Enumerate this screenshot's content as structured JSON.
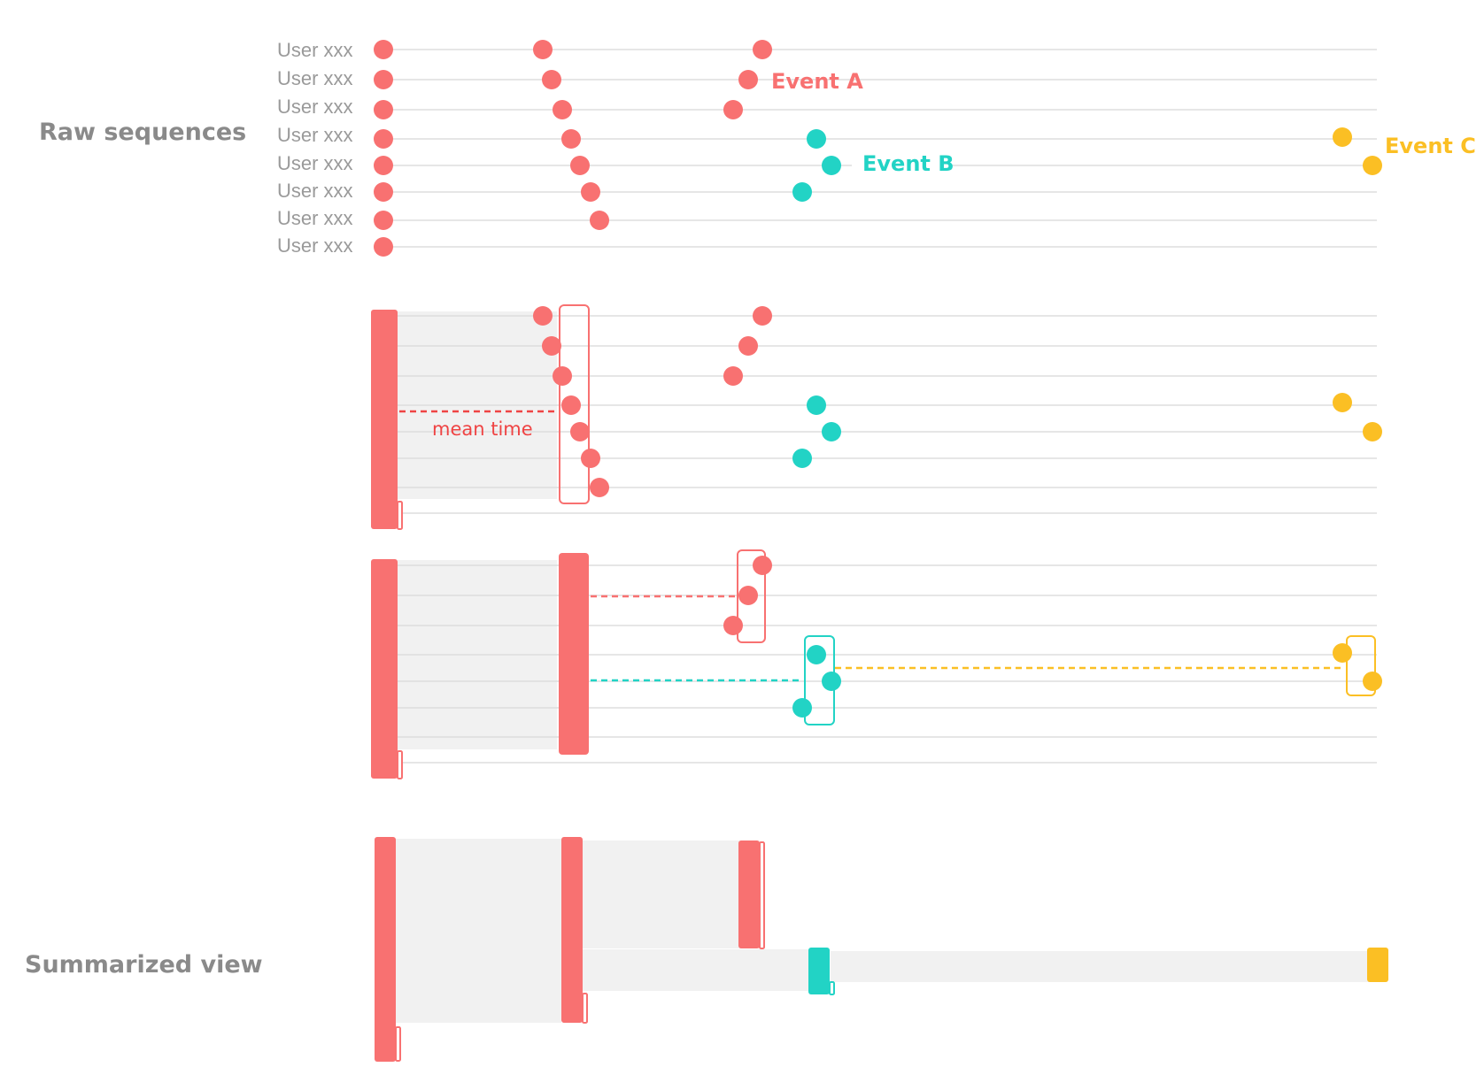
{
  "labels": {
    "raw_sequences": "Raw sequences",
    "summarized_view": "Summarized view",
    "mean_time": "mean time"
  },
  "user_rows": [
    "User xxx",
    "User xxx",
    "User xxx",
    "User xxx",
    "User xxx",
    "User xxx",
    "User xxx",
    "User xxx"
  ],
  "events": {
    "a": {
      "name": "Event A",
      "color": "#f87171"
    },
    "b": {
      "name": "Event B",
      "color": "#22d3c5"
    },
    "c": {
      "name": "Event C",
      "color": "#fbbf24"
    }
  },
  "colors": {
    "start": "#f87171",
    "event_a": "#f87171",
    "event_b": "#22d3c5",
    "event_c": "#fbbf24",
    "gray_fill": "#f1f1f1",
    "row_line": "#dedede",
    "mean_line": "#ef4444"
  }
}
